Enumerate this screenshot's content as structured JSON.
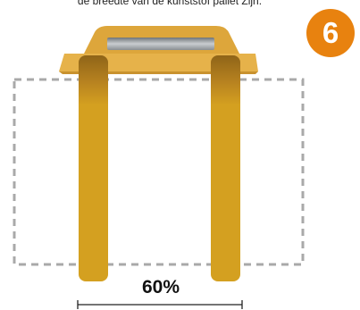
{
  "caption": "de breedte van de kunststof pallet Zijn.",
  "step": {
    "number": "6",
    "color": "#E8820F"
  },
  "measurement": {
    "label": "60%"
  },
  "colors": {
    "handle_light": "#E6B24A",
    "handle_mid": "#DDA63B",
    "strap": "#D4A020",
    "strap_shadow": "#A4731B",
    "slot": "#9EA3A8",
    "dashed_outline": "#A9A9A9",
    "rule": "#222222"
  }
}
